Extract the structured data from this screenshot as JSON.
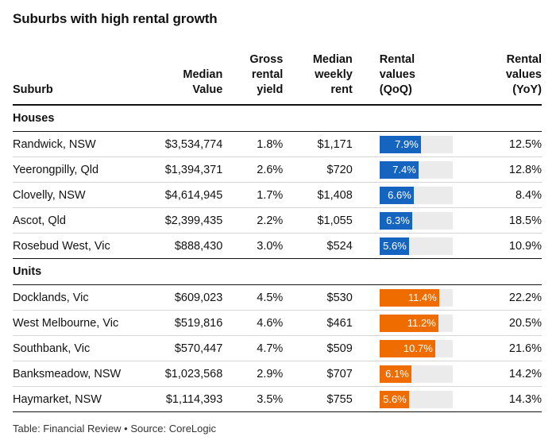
{
  "title": "Suburbs with high rental growth",
  "footer": "Table: Financial Review • Source: CoreLogic",
  "colors": {
    "houses_bar": "#1565c0",
    "units_bar": "#ef6c00",
    "bar_track": "#ebebeb"
  },
  "chart_data": {
    "type": "table",
    "title": "Suburbs with high rental growth",
    "columns": [
      [
        "Suburb"
      ],
      [
        "Median",
        "Value"
      ],
      [
        "Gross",
        "rental",
        "yield"
      ],
      [
        "Median",
        "weekly",
        "rent"
      ],
      [
        "Rental",
        "values",
        "(QoQ)"
      ],
      [
        "Rental",
        "values",
        "(YoY)"
      ]
    ],
    "qoq_max": 14,
    "groups": [
      {
        "name": "Houses",
        "color": "#1565c0",
        "rows": [
          {
            "suburb": "Randwick, NSW",
            "median_value": "$3,534,774",
            "gross_yield": "1.8%",
            "weekly_rent": "$1,171",
            "qoq": 7.9,
            "qoq_label": "7.9%",
            "yoy": "12.5%"
          },
          {
            "suburb": "Yeerongpilly, Qld",
            "median_value": "$1,394,371",
            "gross_yield": "2.6%",
            "weekly_rent": "$720",
            "qoq": 7.4,
            "qoq_label": "7.4%",
            "yoy": "12.8%"
          },
          {
            "suburb": "Clovelly, NSW",
            "median_value": "$4,614,945",
            "gross_yield": "1.7%",
            "weekly_rent": "$1,408",
            "qoq": 6.6,
            "qoq_label": "6.6%",
            "yoy": "8.4%"
          },
          {
            "suburb": "Ascot, Qld",
            "median_value": "$2,399,435",
            "gross_yield": "2.2%",
            "weekly_rent": "$1,055",
            "qoq": 6.3,
            "qoq_label": "6.3%",
            "yoy": "18.5%"
          },
          {
            "suburb": "Rosebud West, Vic",
            "median_value": "$888,430",
            "gross_yield": "3.0%",
            "weekly_rent": "$524",
            "qoq": 5.6,
            "qoq_label": "5.6%",
            "yoy": "10.9%"
          }
        ]
      },
      {
        "name": "Units",
        "color": "#ef6c00",
        "rows": [
          {
            "suburb": "Docklands, Vic",
            "median_value": "$609,023",
            "gross_yield": "4.5%",
            "weekly_rent": "$530",
            "qoq": 11.4,
            "qoq_label": "11.4%",
            "yoy": "22.2%"
          },
          {
            "suburb": "West Melbourne, Vic",
            "median_value": "$519,816",
            "gross_yield": "4.6%",
            "weekly_rent": "$461",
            "qoq": 11.2,
            "qoq_label": "11.2%",
            "yoy": "20.5%"
          },
          {
            "suburb": "Southbank, Vic",
            "median_value": "$570,447",
            "gross_yield": "4.7%",
            "weekly_rent": "$509",
            "qoq": 10.7,
            "qoq_label": "10.7%",
            "yoy": "21.6%"
          },
          {
            "suburb": "Banksmeadow, NSW",
            "median_value": "$1,023,568",
            "gross_yield": "2.9%",
            "weekly_rent": "$707",
            "qoq": 6.1,
            "qoq_label": "6.1%",
            "yoy": "14.2%"
          },
          {
            "suburb": "Haymarket, NSW",
            "median_value": "$1,114,393",
            "gross_yield": "3.5%",
            "weekly_rent": "$755",
            "qoq": 5.6,
            "qoq_label": "5.6%",
            "yoy": "14.3%"
          }
        ]
      }
    ]
  }
}
